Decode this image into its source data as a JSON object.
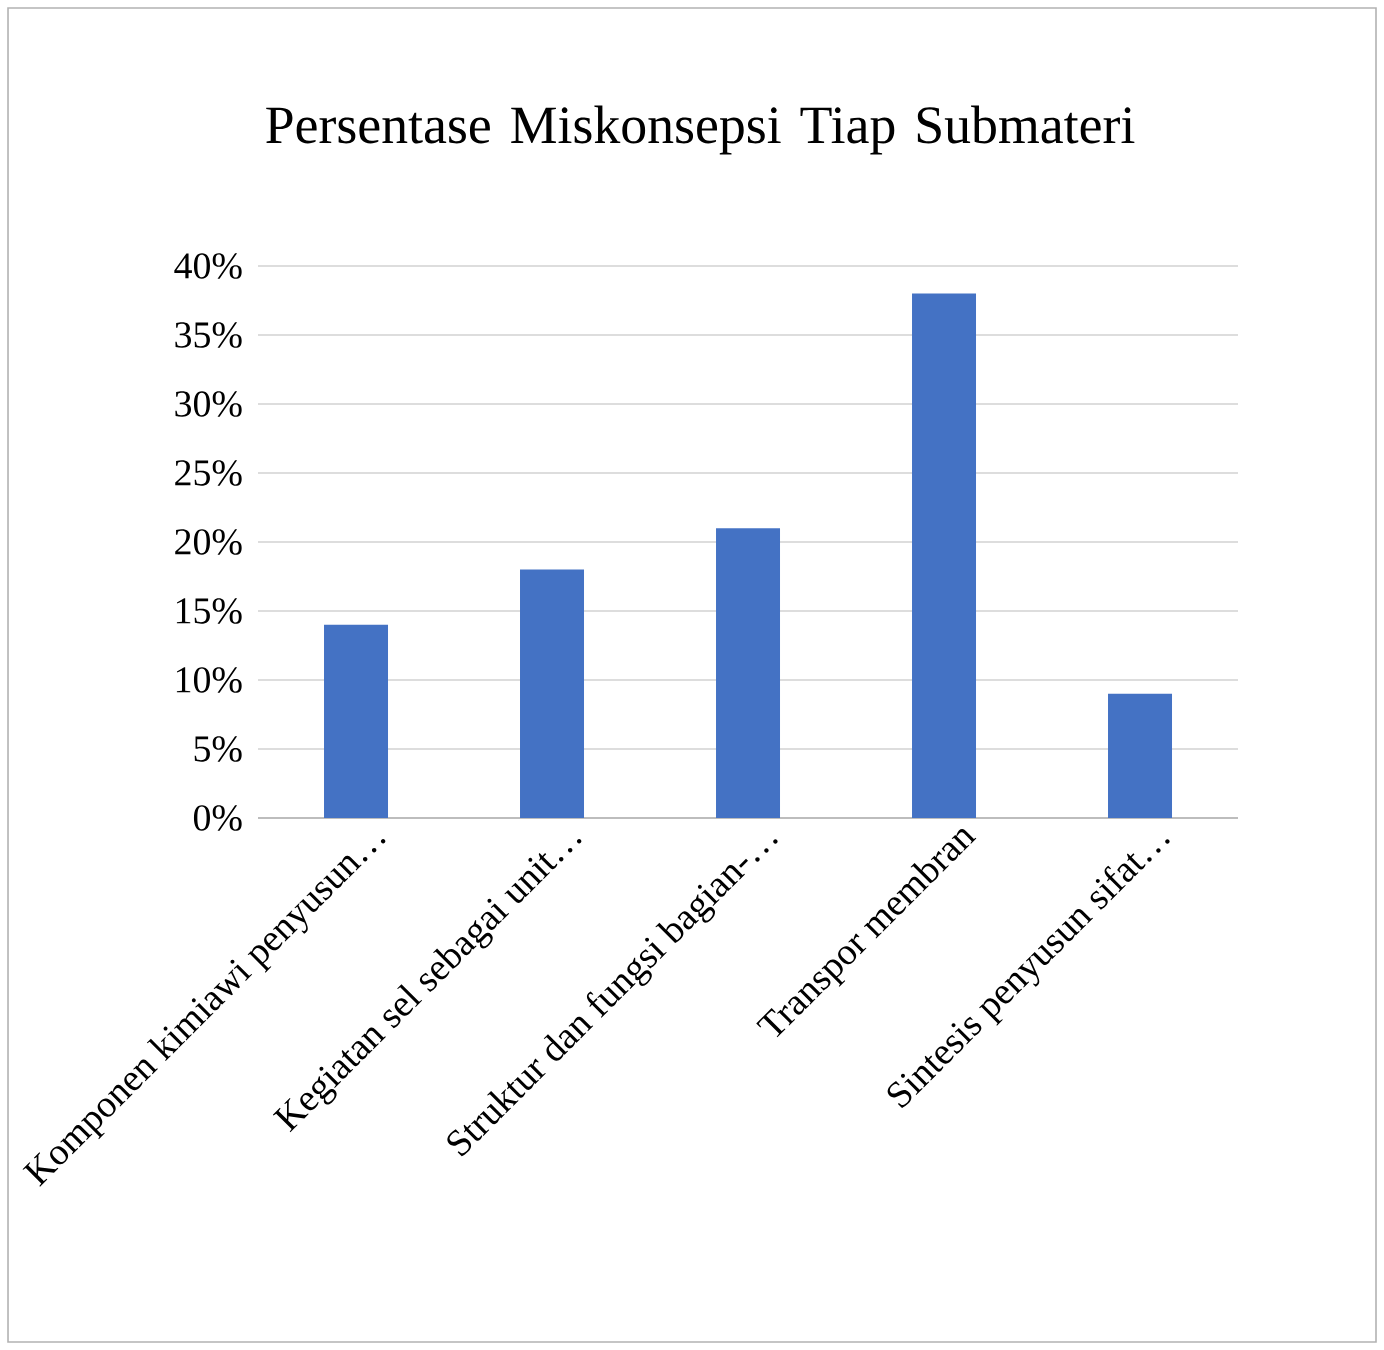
{
  "chart_data": {
    "type": "bar",
    "title": "Persentase Miskonsepsi Tiap Submateri",
    "categories": [
      "Komponen kimiawi penyusun…",
      "Kegiatan sel sebagai unit…",
      "Struktur dan fungsi bagian-…",
      "Transpor membran",
      "Sintesis penyusun sifat…"
    ],
    "values": [
      14,
      18,
      21,
      38,
      9
    ],
    "color": "#4472c4",
    "ylim": [
      0,
      40
    ],
    "yticks": [
      {
        "value": 0,
        "label": "0%"
      },
      {
        "value": 5,
        "label": "5%"
      },
      {
        "value": 10,
        "label": "10%"
      },
      {
        "value": 15,
        "label": "15%"
      },
      {
        "value": 20,
        "label": "20%"
      },
      {
        "value": 25,
        "label": "25%"
      },
      {
        "value": 30,
        "label": "30%"
      },
      {
        "value": 35,
        "label": "35%"
      },
      {
        "value": 40,
        "label": "40%"
      }
    ],
    "grid": "y"
  }
}
